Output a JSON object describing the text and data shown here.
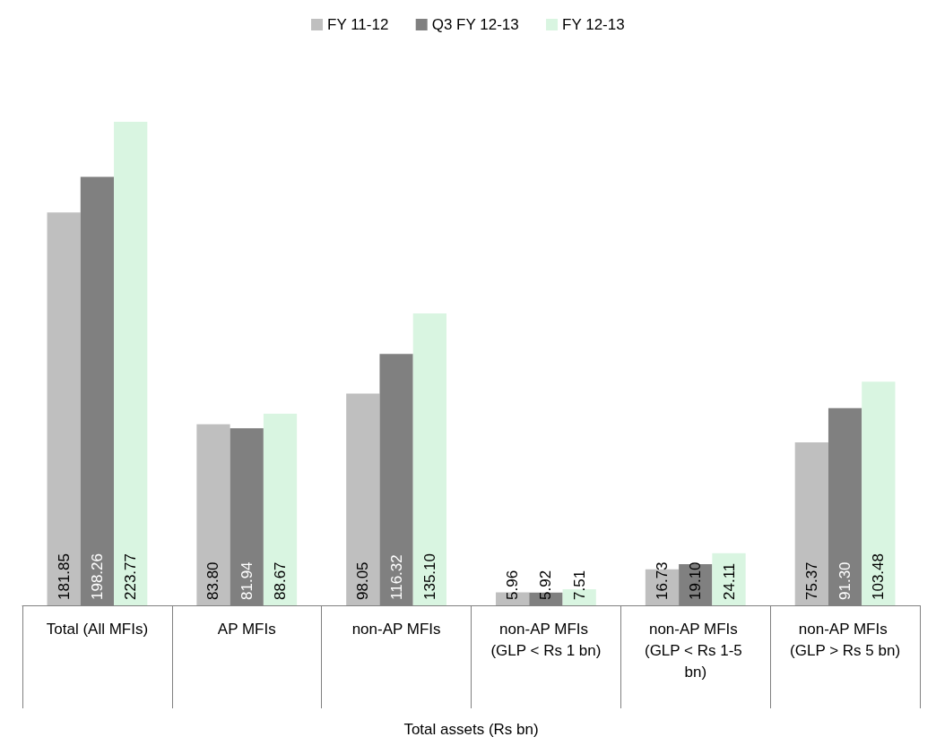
{
  "chart_data": {
    "type": "bar",
    "xlabel": "Total assets (Rs bn)",
    "categories": [
      "Total (All MFIs)",
      "AP MFIs",
      "non-AP MFIs",
      "non-AP MFIs (GLP < Rs 1 bn)",
      "non-AP MFIs (GLP < Rs 1-5 bn)",
      "non-AP MFIs (GLP > Rs 5 bn)"
    ],
    "series": [
      {
        "name": "FY 11-12",
        "color": "#bfbfbf",
        "values": [
          181.85,
          83.8,
          98.05,
          5.96,
          16.73,
          75.37
        ],
        "value_labels": [
          "181.85",
          "83.80",
          "98.05",
          "5.96",
          "16.73",
          "75.37"
        ]
      },
      {
        "name": "Q3 FY 12-13",
        "color": "#808080",
        "values": [
          198.26,
          81.94,
          116.32,
          5.92,
          19.1,
          91.3
        ],
        "value_labels": [
          "198.26",
          "81.94",
          "116.32",
          "5.92",
          "19.10",
          "91.30"
        ]
      },
      {
        "name": "FY 12-13",
        "color": "#d9f5e1",
        "values": [
          223.77,
          88.67,
          135.1,
          7.51,
          24.11,
          103.48
        ],
        "value_labels": [
          "223.77",
          "88.67",
          "135.10",
          "7.51",
          "24.11",
          "103.48"
        ]
      }
    ],
    "legend": "top",
    "grid": false
  }
}
